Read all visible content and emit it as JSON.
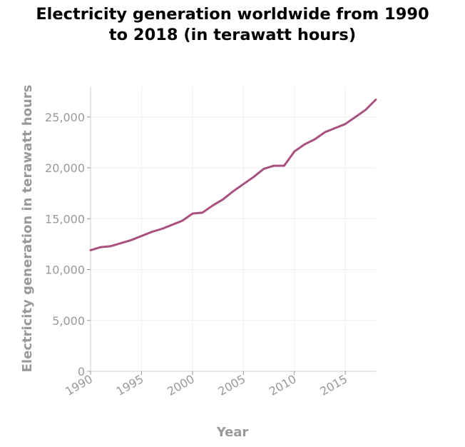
{
  "chart_data": {
    "type": "line",
    "title_lines": [
      "Electricity generation worldwide from 1990",
      "to 2018 (in terawatt hours)"
    ],
    "xlabel": "Year",
    "ylabel": "Electricity generation in terawatt hours",
    "xlim": [
      1990,
      2018
    ],
    "ylim": [
      0,
      28000
    ],
    "xticks": [
      1990,
      1995,
      2000,
      2005,
      2010,
      2015
    ],
    "xtick_labels": [
      "1990",
      "1995",
      "2000",
      "2005",
      "2010",
      "2015"
    ],
    "yticks": [
      0,
      5000,
      10000,
      15000,
      20000,
      25000
    ],
    "ytick_labels": [
      "0",
      "5,000",
      "10,000",
      "15,000",
      "20,000",
      "25,000"
    ],
    "grid": true,
    "series": [
      {
        "color": "#a8507f",
        "x": [
          1990,
          1991,
          1992,
          1993,
          1994,
          1995,
          1996,
          1997,
          1998,
          1999,
          2000,
          2001,
          2002,
          2003,
          2004,
          2005,
          2006,
          2007,
          2008,
          2009,
          2010,
          2011,
          2012,
          2013,
          2014,
          2015,
          2016,
          2017,
          2018
        ],
        "y": [
          11900,
          12200,
          12300,
          12600,
          12900,
          13300,
          13700,
          14000,
          14400,
          14800,
          15500,
          15600,
          16300,
          16900,
          17700,
          18400,
          19100,
          19900,
          20200,
          20200,
          21600,
          22300,
          22800,
          23500,
          23900,
          24300,
          25000,
          25700,
          26700
        ]
      }
    ]
  }
}
